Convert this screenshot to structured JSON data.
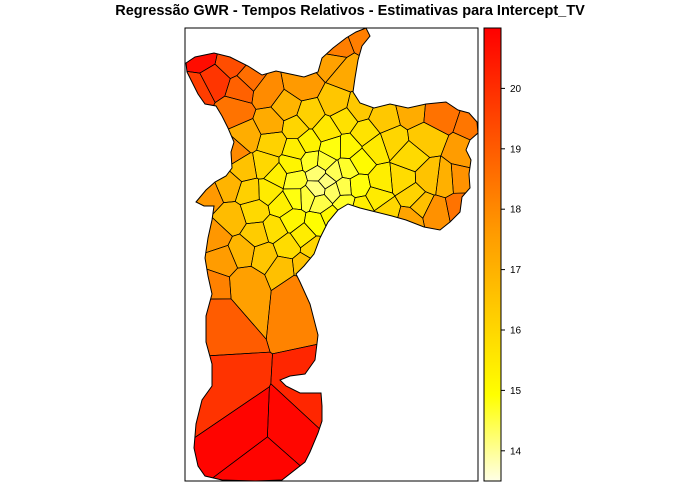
{
  "title": "Regressão GWR - Tempos Relativos - Estimativas para Intercept_TV",
  "legend": {
    "range": [
      13.5,
      21.0
    ],
    "ticks": [
      14,
      15,
      16,
      17,
      18,
      19,
      20
    ],
    "tick_labels": [
      "14",
      "15",
      "16",
      "17",
      "18",
      "19",
      "20"
    ],
    "palette": "heat",
    "colors": {
      "low": "#ffffe6",
      "yellow": "#ffff00",
      "orange": "#ff8c00",
      "high": "#ff0000"
    }
  },
  "map": {
    "subject": "São Paulo districts choropleth",
    "variable": "Intercept_TV",
    "border_color": "#000000"
  }
}
